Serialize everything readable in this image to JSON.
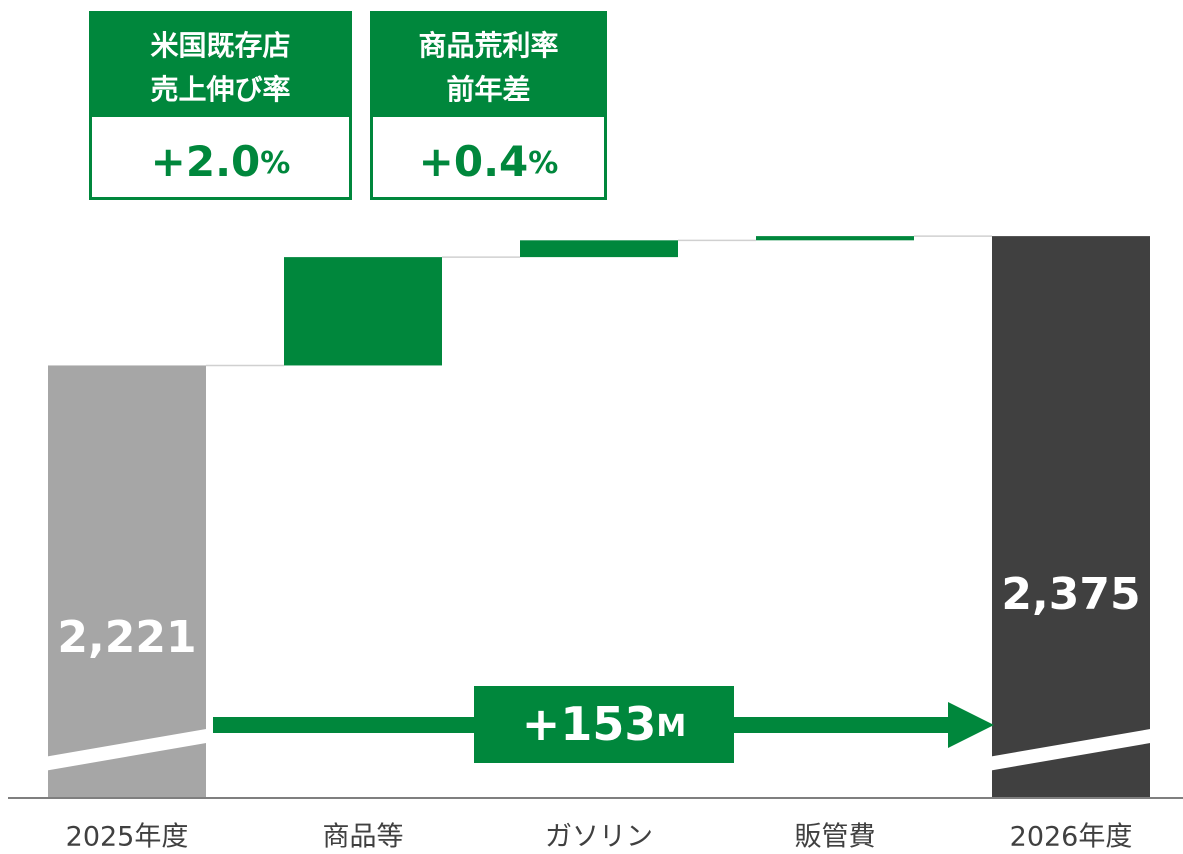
{
  "chart_data": {
    "type": "waterfall",
    "categories": [
      "2025年度",
      "商品等",
      "ガソリン",
      "販管費",
      "2026年度"
    ],
    "values": [
      2221,
      129,
      20,
      5,
      2375
    ],
    "measures": [
      "absolute",
      "relative",
      "relative",
      "relative",
      "total"
    ],
    "value_labels": [
      "2,221",
      null,
      null,
      null,
      "2,375"
    ],
    "colors": [
      "#a6a6a6",
      "#00873c",
      "#00873c",
      "#00873c",
      "#404040"
    ],
    "ylim": [
      1706,
      2418
    ],
    "callouts": [
      {
        "title": [
          "米国既存店",
          "売上伸び率"
        ],
        "value": "+2.0",
        "unit": "%"
      },
      {
        "title": [
          "商品荒利率",
          "前年差"
        ],
        "value": "+0.4",
        "unit": "%"
      }
    ],
    "change": {
      "value": "+153",
      "unit": "M"
    }
  }
}
